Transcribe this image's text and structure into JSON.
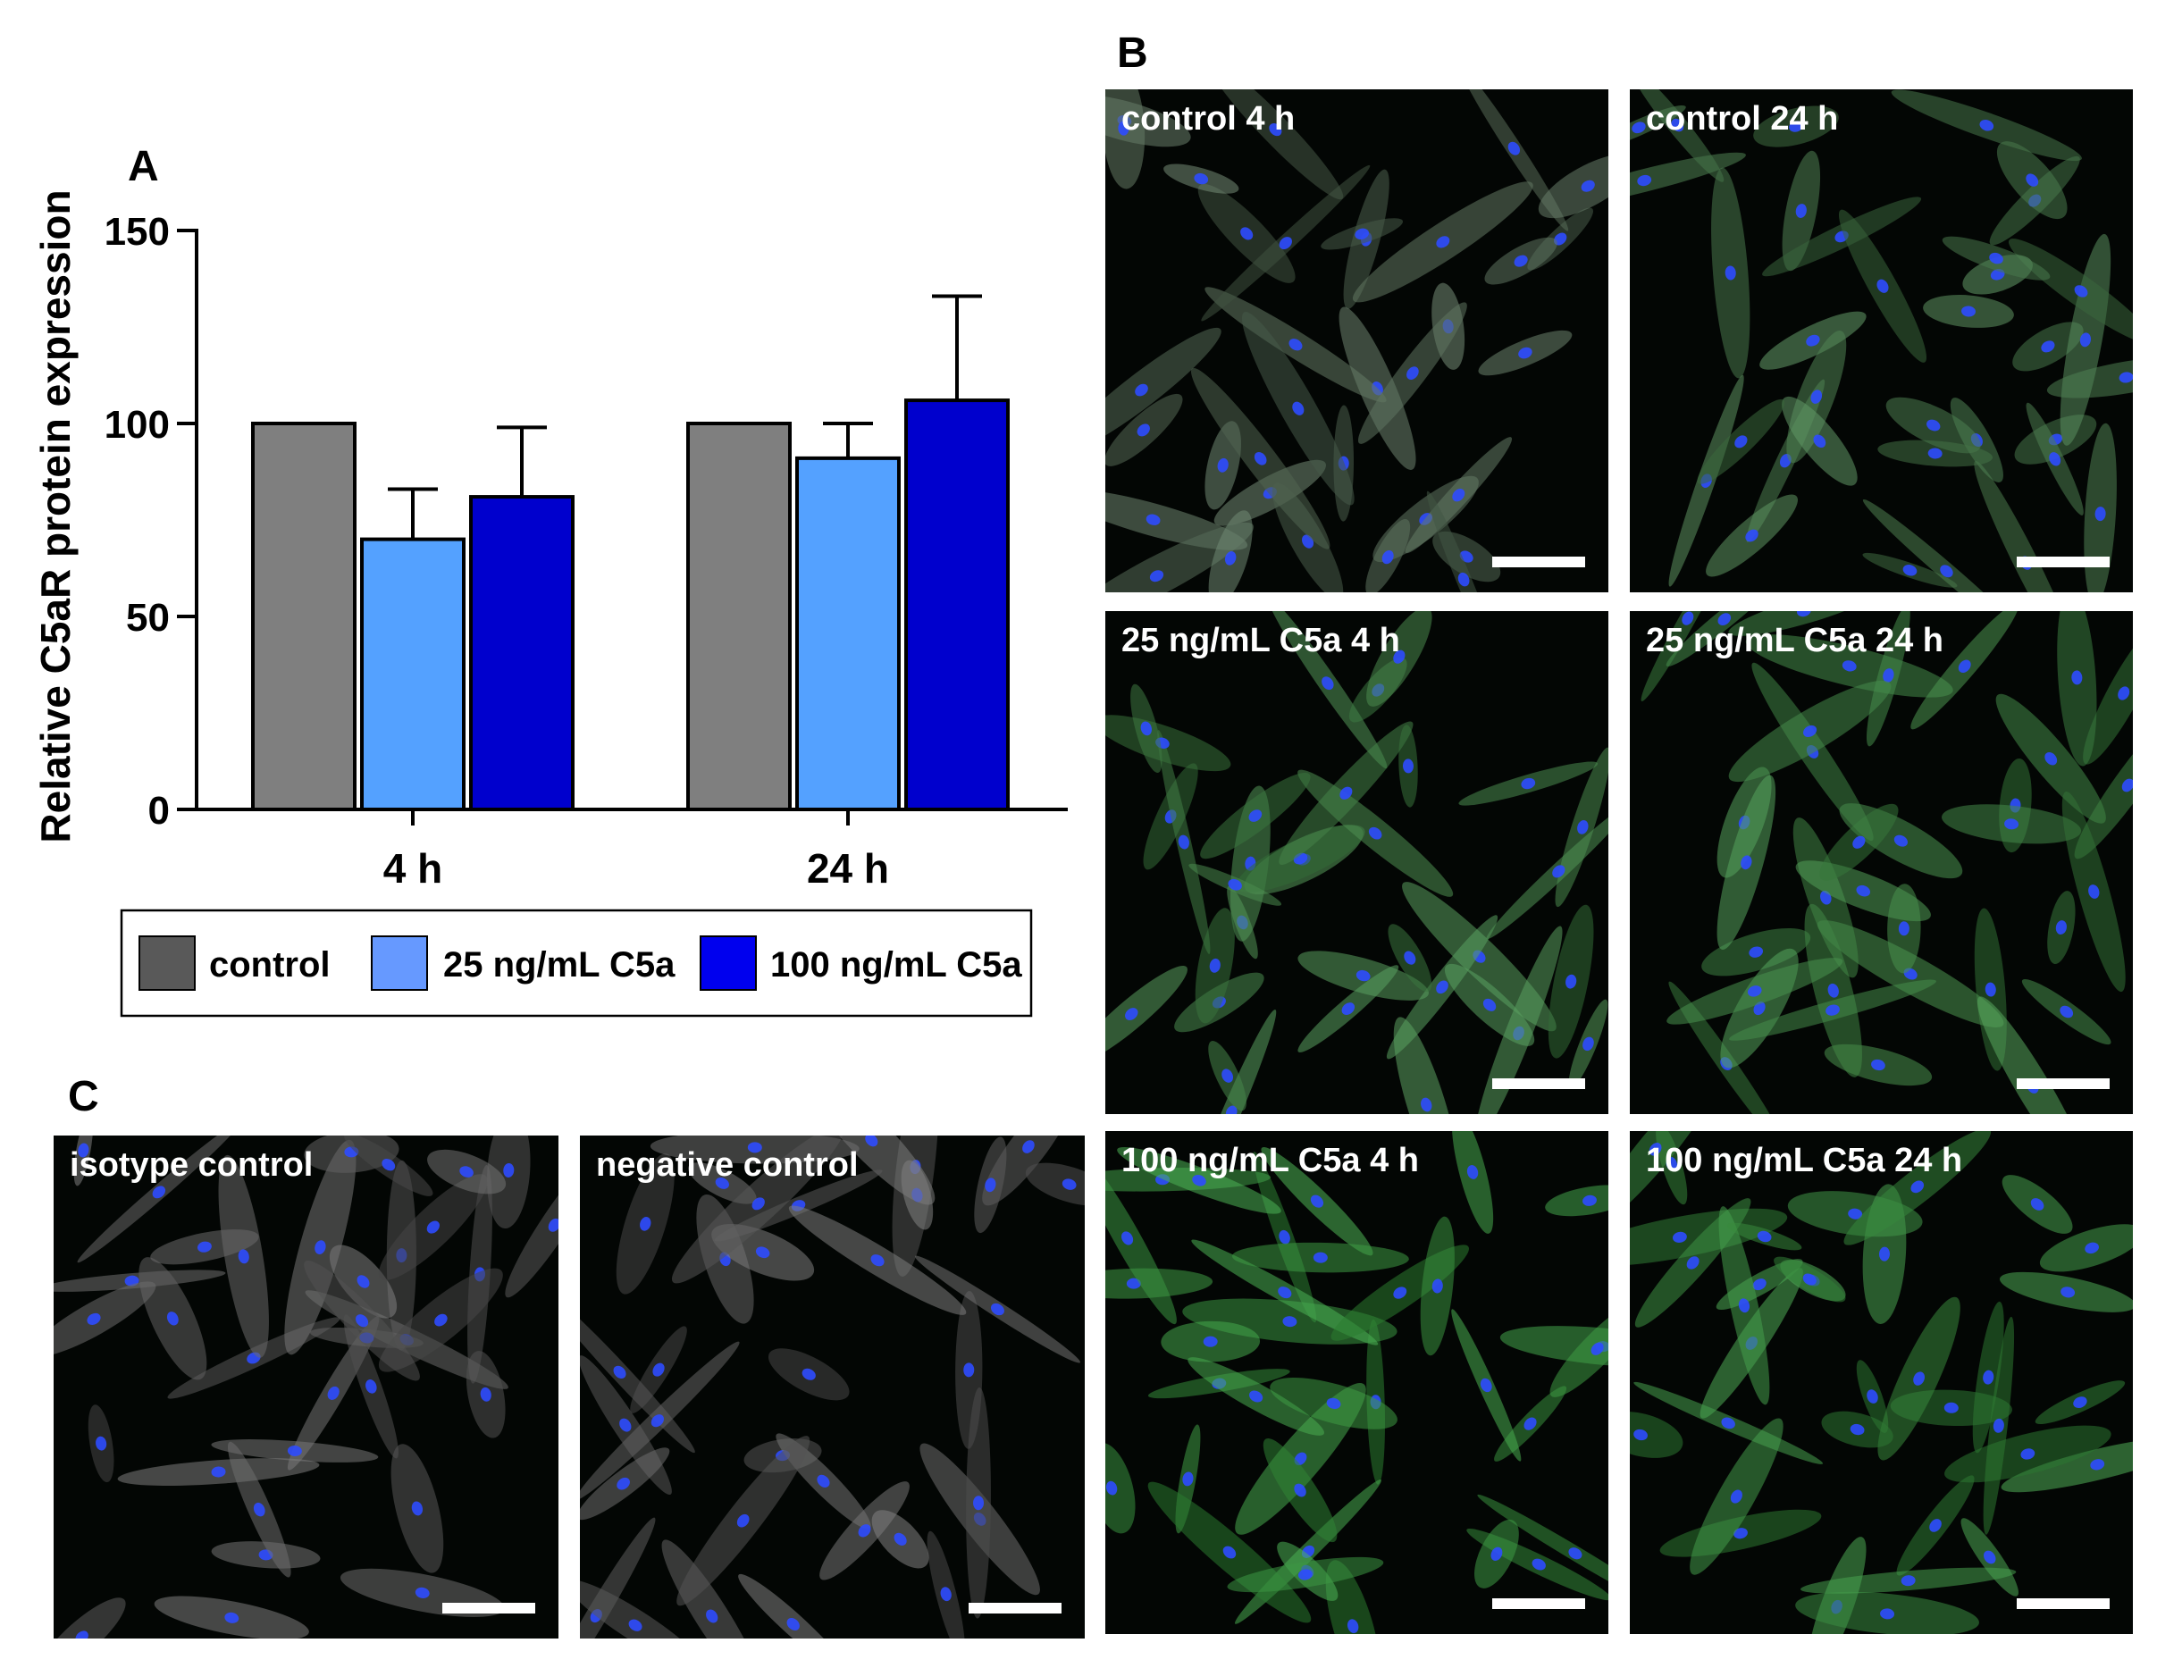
{
  "panel_labels": {
    "a": "A",
    "b": "B",
    "c": "C"
  },
  "chart_data": {
    "type": "bar",
    "ylabel": "Relative C5aR protein expression",
    "xlabel": "",
    "ylim": [
      0,
      150
    ],
    "yticks": [
      0,
      50,
      100,
      150
    ],
    "categories": [
      "4 h",
      "24 h"
    ],
    "series": [
      {
        "name": "control",
        "color": "#7f7f7f",
        "values": [
          100,
          100
        ],
        "errors": [
          0,
          0
        ]
      },
      {
        "name": "25 ng/mL C5a",
        "color": "#54a1ff",
        "values": [
          70,
          91
        ],
        "errors": [
          13,
          9
        ]
      },
      {
        "name": "100 ng/mL C5a",
        "color": "#0000cd",
        "values": [
          81,
          106
        ],
        "errors": [
          18,
          27
        ]
      }
    ],
    "legend": {
      "position": "bottom",
      "items": [
        {
          "label": "control",
          "color": "#595959"
        },
        {
          "label": "25 ng/mL C5a",
          "color": "#6699ff"
        },
        {
          "label": "100 ng/mL C5a",
          "color": "#0000ee"
        }
      ]
    },
    "grid": false
  },
  "micrographs_b": [
    {
      "label": "control 4 h",
      "seed": 11,
      "green": 0.15
    },
    {
      "label": "control 24 h",
      "seed": 23,
      "green": 0.35
    },
    {
      "label": "25 ng/mL C5a 4 h",
      "seed": 37,
      "green": 0.45
    },
    {
      "label": "25 ng/mL C5a 24 h",
      "seed": 41,
      "green": 0.5
    },
    {
      "label": "100 ng/mL C5a 4 h",
      "seed": 53,
      "green": 0.65
    },
    {
      "label": "100 ng/mL C5a 24 h",
      "seed": 67,
      "green": 0.6
    }
  ],
  "micrographs_c": [
    {
      "label": "isotype control",
      "seed": 71,
      "green": 0
    },
    {
      "label": "negative control",
      "seed": 83,
      "green": 0
    }
  ]
}
